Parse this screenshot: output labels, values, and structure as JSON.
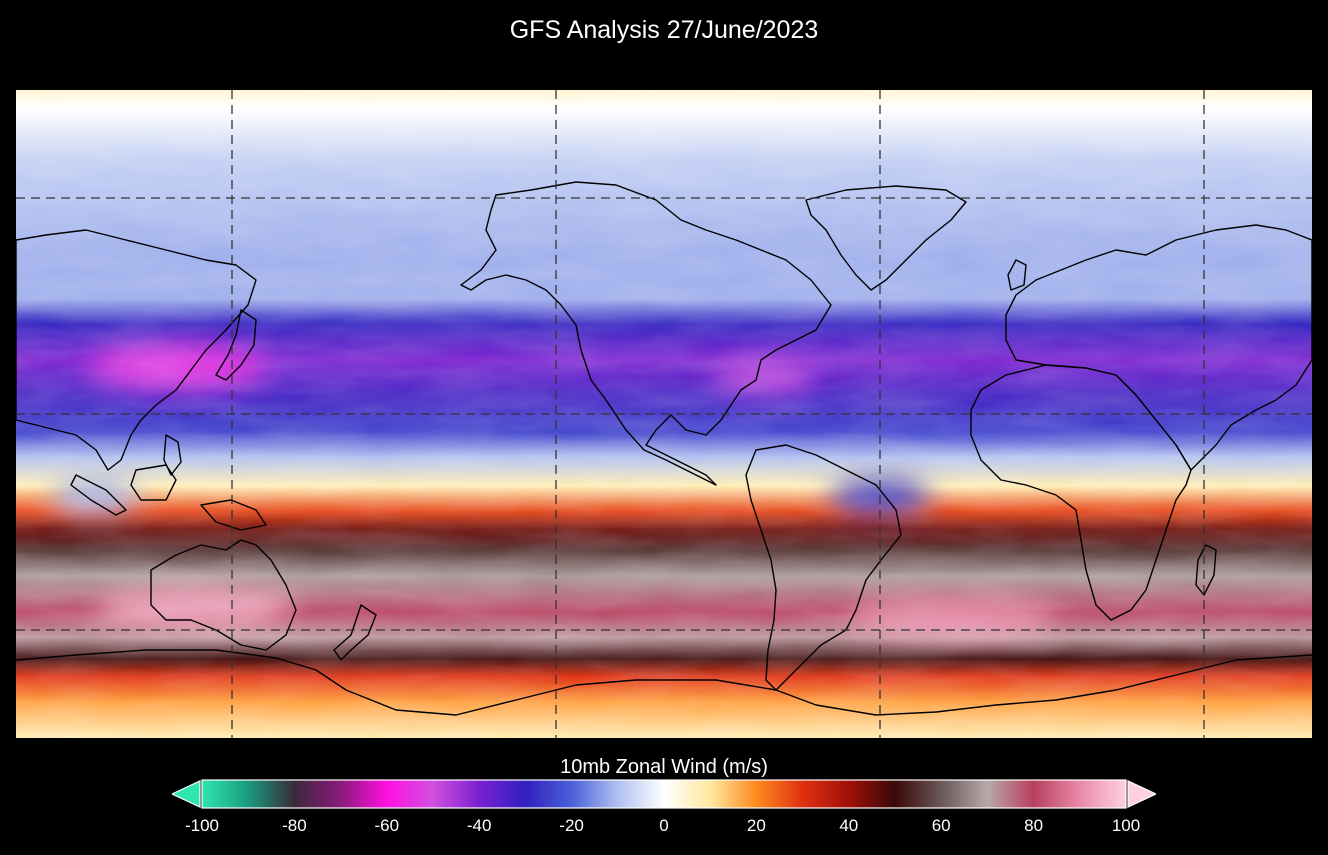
{
  "title": "GFS Analysis 27/June/2023",
  "colorbar": {
    "label": "10mb Zonal Wind (m/s)",
    "ticks": [
      "-100",
      "-80",
      "-60",
      "-40",
      "-20",
      "0",
      "20",
      "40",
      "60",
      "80",
      "100"
    ],
    "range": [
      -100,
      100
    ],
    "stops": [
      {
        "v": -100,
        "c": "#2ee6b0"
      },
      {
        "v": -90,
        "c": "#1a9a7e"
      },
      {
        "v": -80,
        "c": "#3a2a3a"
      },
      {
        "v": -70,
        "c": "#8a1a7a"
      },
      {
        "v": -60,
        "c": "#ff10e0"
      },
      {
        "v": -50,
        "c": "#d050e0"
      },
      {
        "v": -40,
        "c": "#7a20d0"
      },
      {
        "v": -30,
        "c": "#3020c0"
      },
      {
        "v": -20,
        "c": "#4a60d8"
      },
      {
        "v": -10,
        "c": "#b0c0f0"
      },
      {
        "v": 0,
        "c": "#ffffff"
      },
      {
        "v": 10,
        "c": "#ffe8a0"
      },
      {
        "v": 20,
        "c": "#ff8a20"
      },
      {
        "v": 30,
        "c": "#e03010"
      },
      {
        "v": 40,
        "c": "#a01008"
      },
      {
        "v": 50,
        "c": "#3a0808"
      },
      {
        "v": 60,
        "c": "#6a5858"
      },
      {
        "v": 70,
        "c": "#b8a8a8"
      },
      {
        "v": 80,
        "c": "#b84060"
      },
      {
        "v": 90,
        "c": "#e88aa8"
      },
      {
        "v": 100,
        "c": "#ffd0e0"
      }
    ]
  },
  "map": {
    "projection": "equirectangular",
    "lon_range": [
      -180,
      180
    ],
    "lat_range": [
      -90,
      90
    ],
    "gridlines_lon": [
      -120,
      -30,
      60,
      150
    ],
    "gridlines_lat": [
      60,
      0,
      -60
    ],
    "wind_bands": [
      {
        "lat": 90,
        "v": 5
      },
      {
        "lat": 85,
        "v": 0
      },
      {
        "lat": 70,
        "v": -8
      },
      {
        "lat": 45,
        "v": -12
      },
      {
        "lat": 32,
        "v": -12
      },
      {
        "lat": 25,
        "v": -30
      },
      {
        "lat": 15,
        "v": -40
      },
      {
        "lat": 5,
        "v": -32
      },
      {
        "lat": -5,
        "v": -25
      },
      {
        "lat": -12,
        "v": -10
      },
      {
        "lat": -20,
        "v": 8
      },
      {
        "lat": -27,
        "v": 28
      },
      {
        "lat": -32,
        "v": 45
      },
      {
        "lat": -38,
        "v": 55
      },
      {
        "lat": -45,
        "v": 68
      },
      {
        "lat": -55,
        "v": 80
      },
      {
        "lat": -62,
        "v": 72
      },
      {
        "lat": -68,
        "v": 50
      },
      {
        "lat": -73,
        "v": 30
      },
      {
        "lat": -80,
        "v": 18
      },
      {
        "lat": -90,
        "v": 8
      }
    ],
    "anomalies": [
      {
        "lon": -130,
        "lat": -54,
        "rx": 28,
        "ry": 5,
        "v": 95
      },
      {
        "lon": 80,
        "lat": -57,
        "rx": 30,
        "ry": 5,
        "v": 92
      },
      {
        "lon": 60,
        "lat": -23,
        "rx": 14,
        "ry": 5,
        "v": -25
      },
      {
        "lon": -158,
        "lat": -23,
        "rx": 12,
        "ry": 5,
        "v": -12
      },
      {
        "lon": -135,
        "lat": 13,
        "rx": 25,
        "ry": 6,
        "v": -55
      },
      {
        "lon": 28,
        "lat": 10,
        "rx": 15,
        "ry": 4,
        "v": -50
      }
    ]
  }
}
